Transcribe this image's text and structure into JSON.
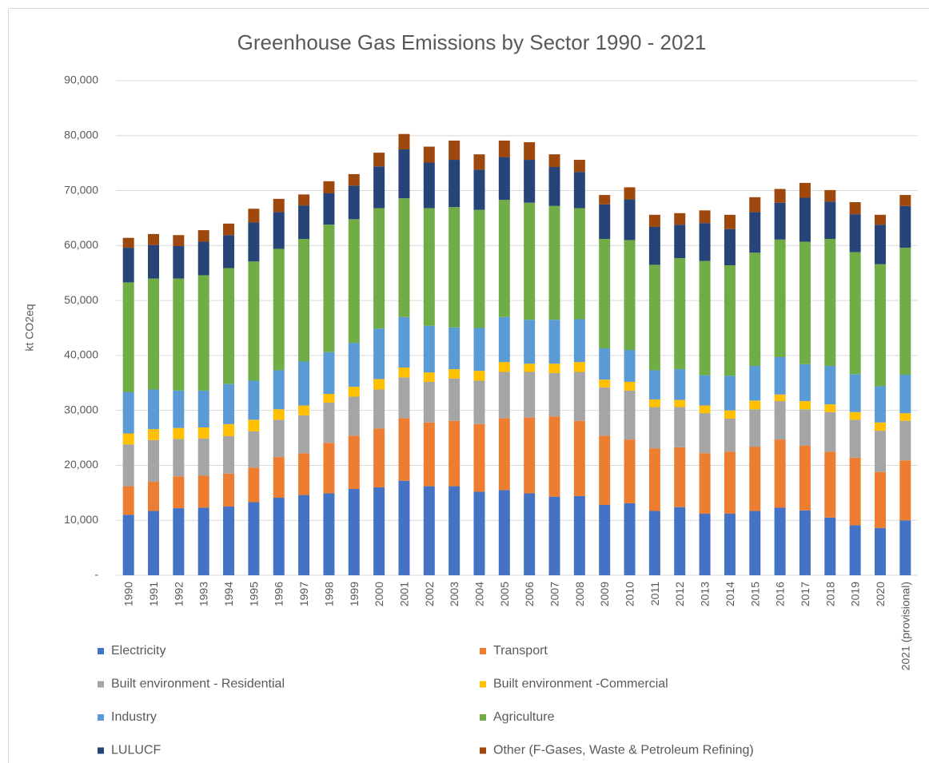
{
  "chart_data": {
    "type": "stacked_bar",
    "title": "Greenhouse Gas Emissions by Sector 1990 - 2021",
    "y_label": "kt CO2eq",
    "categories": [
      "1990",
      "1991",
      "1992",
      "1993",
      "1994",
      "1995",
      "1996",
      "1997",
      "1998",
      "1999",
      "2000",
      "2001",
      "2002",
      "2003",
      "2004",
      "2005",
      "2006",
      "2007",
      "2008",
      "2009",
      "2010",
      "2011",
      "2012",
      "2013",
      "2014",
      "2015",
      "2016",
      "2017",
      "2018",
      "2019",
      "2020",
      "2021 (provisional)"
    ],
    "series": [
      {
        "name": "Electricity",
        "color": "#4472c4",
        "values": [
          11000,
          11700,
          12200,
          12300,
          12500,
          13300,
          14100,
          14600,
          14900,
          15700,
          16000,
          17200,
          16200,
          16200,
          15200,
          15500,
          14900,
          14300,
          14400,
          12800,
          13100,
          11700,
          12400,
          11200,
          11200,
          11700,
          12300,
          11800,
          10500,
          9100,
          8600,
          10000
        ]
      },
      {
        "name": "Transport",
        "color": "#ed7d31",
        "values": [
          5200,
          5300,
          5800,
          5800,
          6000,
          6300,
          7400,
          7600,
          9200,
          9700,
          10700,
          11400,
          11600,
          11900,
          12300,
          13100,
          13800,
          14600,
          13700,
          12600,
          11600,
          11400,
          10900,
          11000,
          11300,
          11700,
          12400,
          11800,
          12000,
          12300,
          10200,
          10900
        ]
      },
      {
        "name": "Built environment - Residential",
        "color": "#a5a5a5",
        "values": [
          7600,
          7600,
          6800,
          6800,
          6800,
          6600,
          6800,
          6900,
          7300,
          7100,
          7100,
          7400,
          7400,
          7700,
          7900,
          8400,
          8300,
          7900,
          8900,
          8800,
          8900,
          7500,
          7300,
          7300,
          6000,
          6800,
          7000,
          6600,
          7200,
          6900,
          7500,
          7200
        ]
      },
      {
        "name": "Built environment -Commercial",
        "color": "#ffc000",
        "values": [
          2000,
          2000,
          2000,
          2000,
          2200,
          2100,
          1900,
          1800,
          1600,
          1800,
          1900,
          1800,
          1700,
          1700,
          1800,
          1800,
          1500,
          1700,
          1800,
          1400,
          1600,
          1400,
          1300,
          1400,
          1500,
          1600,
          1200,
          1500,
          1400,
          1400,
          1500,
          1400
        ]
      },
      {
        "name": "Industry",
        "color": "#5b9bd5",
        "values": [
          7500,
          7200,
          6800,
          6700,
          7300,
          7100,
          7100,
          8000,
          7600,
          8000,
          9200,
          9200,
          8500,
          7600,
          7800,
          8200,
          8000,
          8000,
          7800,
          5700,
          5800,
          5300,
          5600,
          5500,
          6300,
          6300,
          6800,
          6700,
          7000,
          6900,
          6600,
          7000
        ]
      },
      {
        "name": "Agriculture",
        "color": "#70ad47",
        "values": [
          20000,
          20200,
          20400,
          21000,
          21100,
          21700,
          22100,
          22300,
          23200,
          22500,
          21900,
          21600,
          21400,
          21900,
          21500,
          21300,
          21300,
          20700,
          20200,
          19900,
          20000,
          19200,
          20200,
          20800,
          20100,
          20600,
          21400,
          22300,
          23100,
          22200,
          22200,
          23100
        ]
      },
      {
        "name": "LULUCF",
        "color": "#264478",
        "values": [
          6300,
          6100,
          5900,
          6100,
          6000,
          7100,
          6700,
          6100,
          5700,
          6100,
          7600,
          8900,
          8300,
          8600,
          7300,
          7800,
          7800,
          7100,
          6600,
          6300,
          7400,
          6900,
          6100,
          6900,
          6600,
          7400,
          6700,
          8000,
          6800,
          6900,
          7200,
          7600
        ]
      },
      {
        "name": "Other (F-Gases, Waste & Petroleum Refining)",
        "color": "#9e480e",
        "values": [
          1800,
          2000,
          2000,
          2100,
          2100,
          2500,
          2400,
          2000,
          2200,
          2100,
          2500,
          2800,
          2900,
          3500,
          2800,
          3000,
          3200,
          2300,
          2200,
          1700,
          2200,
          2200,
          2100,
          2300,
          2600,
          2700,
          2500,
          2700,
          2100,
          2200,
          1800,
          2000
        ]
      }
    ],
    "ylim": [
      0,
      90000
    ],
    "yticks": [
      {
        "value": 0,
        "label": "-"
      },
      {
        "value": 10000,
        "label": "10,000"
      },
      {
        "value": 20000,
        "label": "20,000"
      },
      {
        "value": 30000,
        "label": "30,000"
      },
      {
        "value": 40000,
        "label": "40,000"
      },
      {
        "value": 50000,
        "label": "50,000"
      },
      {
        "value": 60000,
        "label": "60,000"
      },
      {
        "value": 70000,
        "label": "70,000"
      },
      {
        "value": 80000,
        "label": "80,000"
      },
      {
        "value": 90000,
        "label": "90,000"
      }
    ],
    "grid": true,
    "legend": "bottom"
  }
}
